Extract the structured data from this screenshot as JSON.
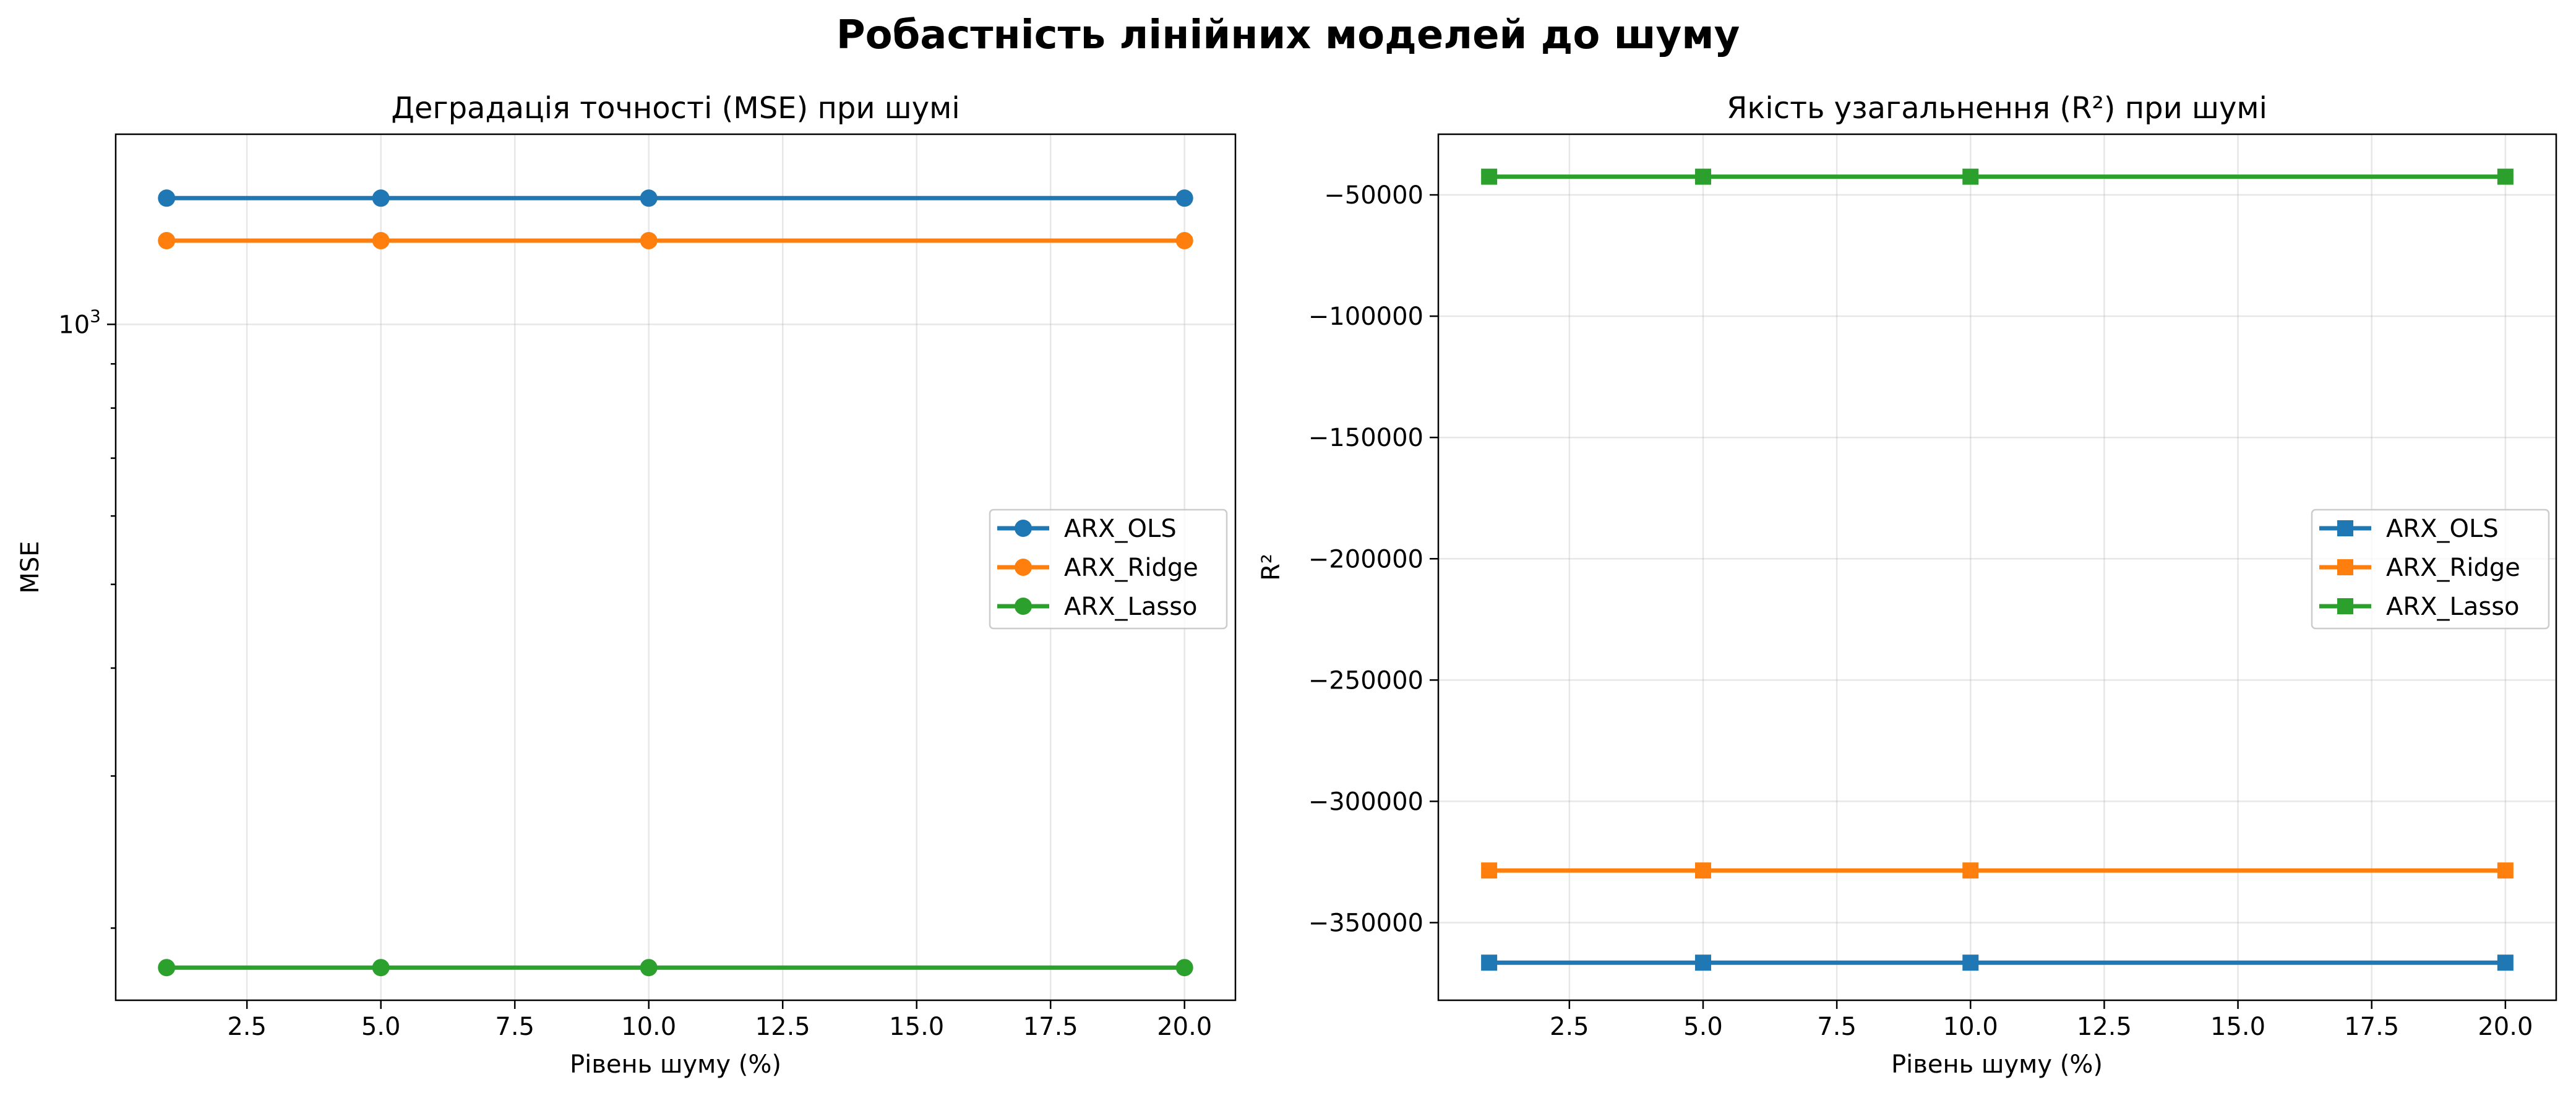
{
  "suptitle": "Робастність лінійних моделей до шуму",
  "colors": {
    "ARX_OLS": "#1f77b4",
    "ARX_Ridge": "#ff7f0e",
    "ARX_Lasso": "#2ca02c"
  },
  "chart_data": [
    {
      "type": "line",
      "title": "Деградація точності (MSE) при шумі",
      "xlabel": "Рівень шуму (%)",
      "ylabel": "MSE",
      "yscale": "log",
      "marker": "circle",
      "grid": true,
      "legend_position": "center-right",
      "x": [
        1,
        5,
        10,
        20
      ],
      "xlim": [
        0.05,
        20.95
      ],
      "ylim": [
        165,
        1660
      ],
      "xticks": [
        2.5,
        5.0,
        7.5,
        10.0,
        12.5,
        15.0,
        17.5,
        20.0
      ],
      "xtick_labels": [
        "2.5",
        "5.0",
        "7.5",
        "10.0",
        "12.5",
        "15.0",
        "17.5",
        "20.0"
      ],
      "yticks": [
        1000
      ],
      "ytick_labels": [
        "10"
      ],
      "ytick_exponents": [
        "3"
      ],
      "yminor": [
        200,
        300,
        400,
        500,
        600,
        700,
        800,
        900
      ],
      "series": [
        {
          "name": "ARX_OLS",
          "values": [
            1400,
            1400,
            1400,
            1400
          ]
        },
        {
          "name": "ARX_Ridge",
          "values": [
            1250,
            1250,
            1250,
            1250
          ]
        },
        {
          "name": "ARX_Lasso",
          "values": [
            180,
            180,
            180,
            180
          ]
        }
      ]
    },
    {
      "type": "line",
      "title": "Якість узагальнення (R²) при шумі",
      "xlabel": "Рівень шуму (%)",
      "ylabel": "R²",
      "yscale": "linear",
      "marker": "square",
      "grid": true,
      "legend_position": "center-right",
      "x": [
        1,
        5,
        10,
        20
      ],
      "xlim": [
        0.05,
        20.95
      ],
      "ylim": [
        -382000,
        -25000
      ],
      "xticks": [
        2.5,
        5.0,
        7.5,
        10.0,
        12.5,
        15.0,
        17.5,
        20.0
      ],
      "xtick_labels": [
        "2.5",
        "5.0",
        "7.5",
        "10.0",
        "12.5",
        "15.0",
        "17.5",
        "20.0"
      ],
      "yticks": [
        -50000,
        -100000,
        -150000,
        -200000,
        -250000,
        -300000,
        -350000
      ],
      "ytick_labels": [
        "−50000",
        "−100000",
        "−150000",
        "−200000",
        "−250000",
        "−300000",
        "−350000"
      ],
      "series": [
        {
          "name": "ARX_OLS",
          "values": [
            -366500,
            -366500,
            -366500,
            -366500
          ]
        },
        {
          "name": "ARX_Ridge",
          "values": [
            -328500,
            -328500,
            -328500,
            -328500
          ]
        },
        {
          "name": "ARX_Lasso",
          "values": [
            -42500,
            -42500,
            -42500,
            -42500
          ]
        }
      ]
    }
  ]
}
